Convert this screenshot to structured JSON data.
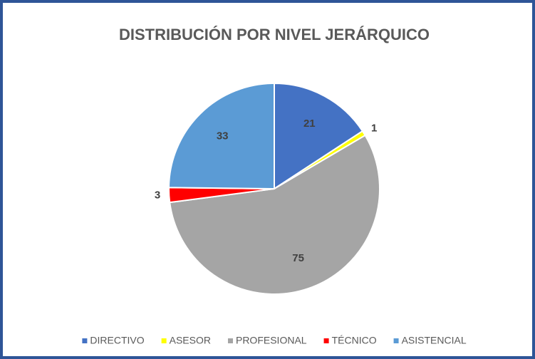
{
  "chart_data": {
    "type": "pie",
    "title": "DISTRIBUCIÓN POR NIVEL JERÁRQUICO",
    "categories": [
      "DIRECTIVO",
      "ASESOR",
      "PROFESIONAL",
      "TÉCNICO",
      "ASISTENCIAL"
    ],
    "values": [
      21,
      1,
      75,
      3,
      33
    ],
    "colors": [
      "#4472c4",
      "#ffff00",
      "#a5a5a5",
      "#ff0000",
      "#5b9bd5"
    ],
    "legend": "bottom"
  }
}
